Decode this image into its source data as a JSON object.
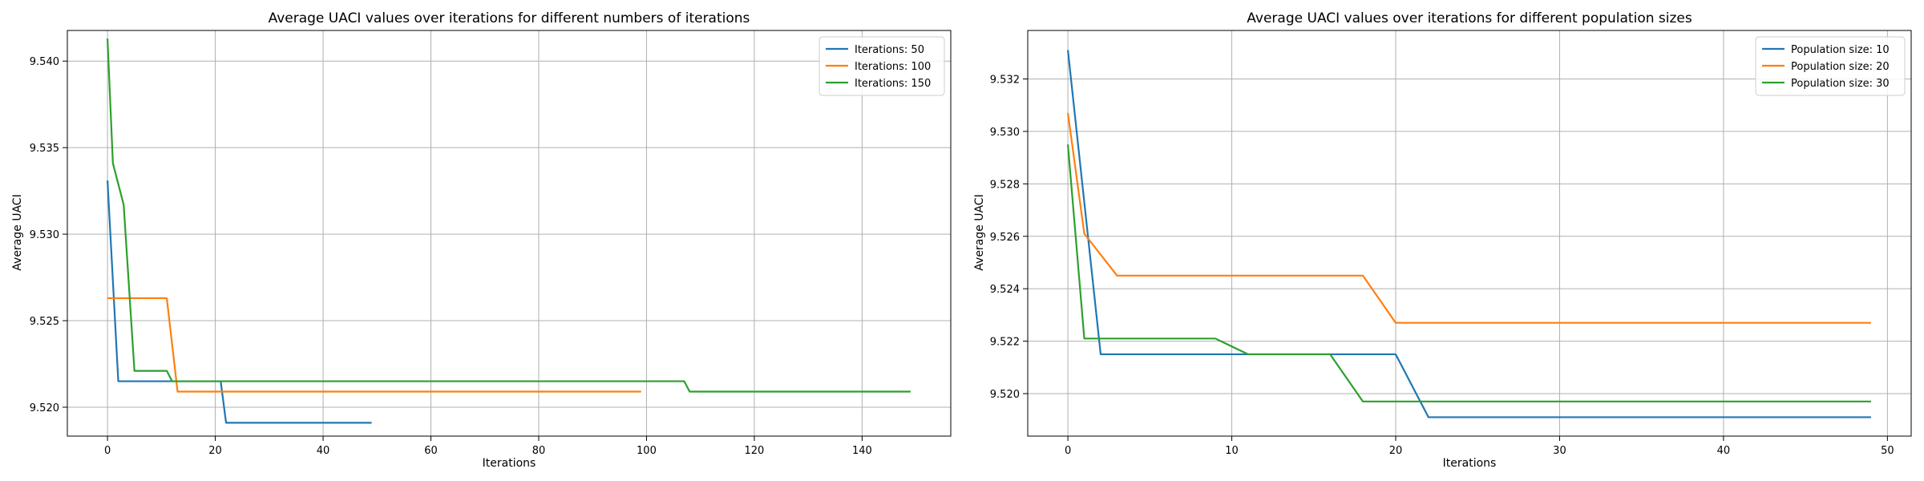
{
  "chart_data": [
    {
      "type": "line",
      "title": "Average UACI values over iterations for different numbers of iterations",
      "xlabel": "Iterations",
      "ylabel": "Average UACI",
      "xlim": [
        -7.45,
        156.45
      ],
      "ylim": [
        9.51833,
        9.54177
      ],
      "xticks": [
        0,
        20,
        40,
        60,
        80,
        100,
        120,
        140
      ],
      "yticks": [
        9.52,
        9.525,
        9.53,
        9.535,
        9.54
      ],
      "ytick_labels": [
        "9.520",
        "9.525",
        "9.530",
        "9.535",
        "9.540"
      ],
      "grid": true,
      "legend_position": "top-right",
      "series": [
        {
          "name": "Iterations: 50",
          "color": "#1f77b4",
          "points": [
            [
              0,
              9.5331
            ],
            [
              2,
              9.5215
            ],
            [
              21,
              9.5215
            ],
            [
              22,
              9.5191
            ],
            [
              49,
              9.5191
            ]
          ]
        },
        {
          "name": "Iterations: 100",
          "color": "#ff7f0e",
          "points": [
            [
              0,
              9.5263
            ],
            [
              11,
              9.5263
            ],
            [
              13,
              9.5209
            ],
            [
              99,
              9.5209
            ]
          ]
        },
        {
          "name": "Iterations: 150",
          "color": "#2ca02c",
          "points": [
            [
              0,
              9.5413
            ],
            [
              1,
              9.5341
            ],
            [
              3,
              9.5317
            ],
            [
              5,
              9.5221
            ],
            [
              11,
              9.5221
            ],
            [
              12,
              9.5215
            ],
            [
              107,
              9.5215
            ],
            [
              108,
              9.5209
            ],
            [
              149,
              9.5209
            ]
          ]
        }
      ]
    },
    {
      "type": "line",
      "title": "Average UACI values over iterations for different population sizes",
      "xlabel": "Iterations",
      "ylabel": "Average UACI",
      "xlim": [
        -2.45,
        51.45
      ],
      "ylim": [
        9.51838,
        9.53385
      ],
      "xticks": [
        0,
        10,
        20,
        30,
        40,
        50
      ],
      "yticks": [
        9.52,
        9.522,
        9.524,
        9.526,
        9.528,
        9.53,
        9.532
      ],
      "ytick_labels": [
        "9.520",
        "9.522",
        "9.524",
        "9.526",
        "9.528",
        "9.530",
        "9.532"
      ],
      "grid": true,
      "legend_position": "top-right",
      "series": [
        {
          "name": "Population size: 10",
          "color": "#1f77b4",
          "points": [
            [
              0,
              9.5331
            ],
            [
              2,
              9.5215
            ],
            [
              20,
              9.5215
            ],
            [
              22,
              9.5191
            ],
            [
              49,
              9.5191
            ]
          ]
        },
        {
          "name": "Population size: 20",
          "color": "#ff7f0e",
          "points": [
            [
              0,
              9.5307
            ],
            [
              1,
              9.5261
            ],
            [
              3,
              9.5245
            ],
            [
              18,
              9.5245
            ],
            [
              20,
              9.5227
            ],
            [
              49,
              9.5227
            ]
          ]
        },
        {
          "name": "Population size: 30",
          "color": "#2ca02c",
          "points": [
            [
              0,
              9.5295
            ],
            [
              1,
              9.5221
            ],
            [
              9,
              9.5221
            ],
            [
              11,
              9.5215
            ],
            [
              16,
              9.5215
            ],
            [
              18,
              9.5197
            ],
            [
              49,
              9.5197
            ]
          ]
        }
      ]
    }
  ]
}
